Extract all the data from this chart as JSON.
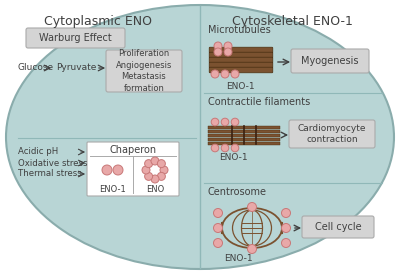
{
  "bg_color": "#b8d5d5",
  "box_color": "#d4d4d4",
  "brown_color": "#7B5230",
  "pink_color": "#E8A8A8",
  "pink_outline": "#C87878",
  "text_dark": "#404040",
  "divider_color": "#90b8b8",
  "title_left": "Cytoplasmic ENO",
  "title_right": "Cytoskeletal ENO-1",
  "warburg": "Warburg Effect",
  "glucose_text": "Glucose",
  "pyruvate_text": "Pyruvate",
  "proliferation_text": "Proliferation\nAngiogenesis\nMetastasis\nformation",
  "acidic": "Acidic pH",
  "oxidative": "Oxidative stress",
  "thermal": "Thermal stress",
  "chaperon": "Chaperon",
  "eno1_text": "ENO-1",
  "eno_text": "ENO",
  "microtubules": "Microtubules",
  "myogenesis": "Myogenesis",
  "contractile": "Contractile filaments",
  "cardiomyocyte": "Cardiomyocyte\ncontraction",
  "centrosome": "Centrosome",
  "cell_cycle": "Cell cycle"
}
